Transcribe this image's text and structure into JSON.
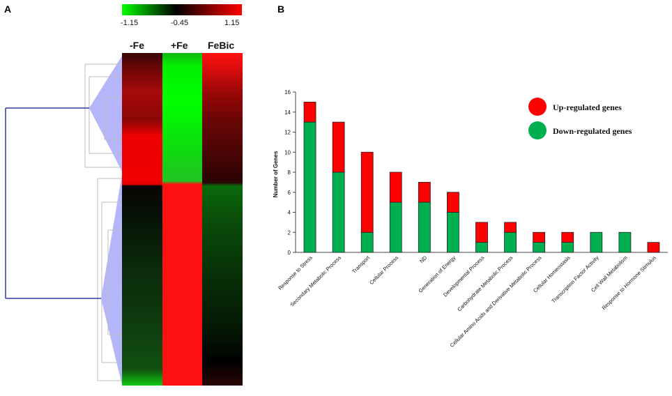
{
  "figure": {
    "panel_a": "A",
    "panel_b": "B"
  },
  "heatmap": {
    "scale": {
      "min_label": "-1.15",
      "mid_label": "-0.45",
      "max_label": "1.15",
      "low_color": "#00ff00",
      "mid_color": "#000000",
      "high_color": "#ff0000"
    },
    "columns": [
      "-Fe",
      "+Fe",
      "FeBic"
    ]
  },
  "chart_data": {
    "type": "bar",
    "stacked": true,
    "title": "",
    "xlabel": "",
    "ylabel": "Number of Genes",
    "ylim": [
      0,
      16
    ],
    "yticks": [
      0,
      2,
      4,
      6,
      8,
      10,
      12,
      14,
      16
    ],
    "categories": [
      "Response to Stress",
      "Secondary Metabolic Process",
      "Transport",
      "Cellular Process",
      "ND",
      "Generation of Energy",
      "Developmental Process",
      "Carbohydrate Metabolic Process",
      "Cellular Amino Acids and Derivative Metabolic Process",
      "Cellular Homeostasis",
      "Transcription Factor Activity",
      "Cell Wall Metabolism",
      "Response to Hormone Stimulus"
    ],
    "series": [
      {
        "name": "Down-regulated genes",
        "color": "#00b050",
        "values": [
          13,
          8,
          2,
          5,
          5,
          4,
          1,
          2,
          1,
          1,
          2,
          2,
          0
        ]
      },
      {
        "name": "Up-regulated genes",
        "color": "#ff0000",
        "values": [
          2,
          5,
          8,
          3,
          2,
          2,
          2,
          1,
          1,
          1,
          0,
          0,
          1
        ]
      }
    ],
    "legend": [
      {
        "label": "Up-regulated genes",
        "color": "#ff0000"
      },
      {
        "label": "Down-regulated genes",
        "color": "#00b050"
      }
    ],
    "legend_position": "top-right"
  }
}
